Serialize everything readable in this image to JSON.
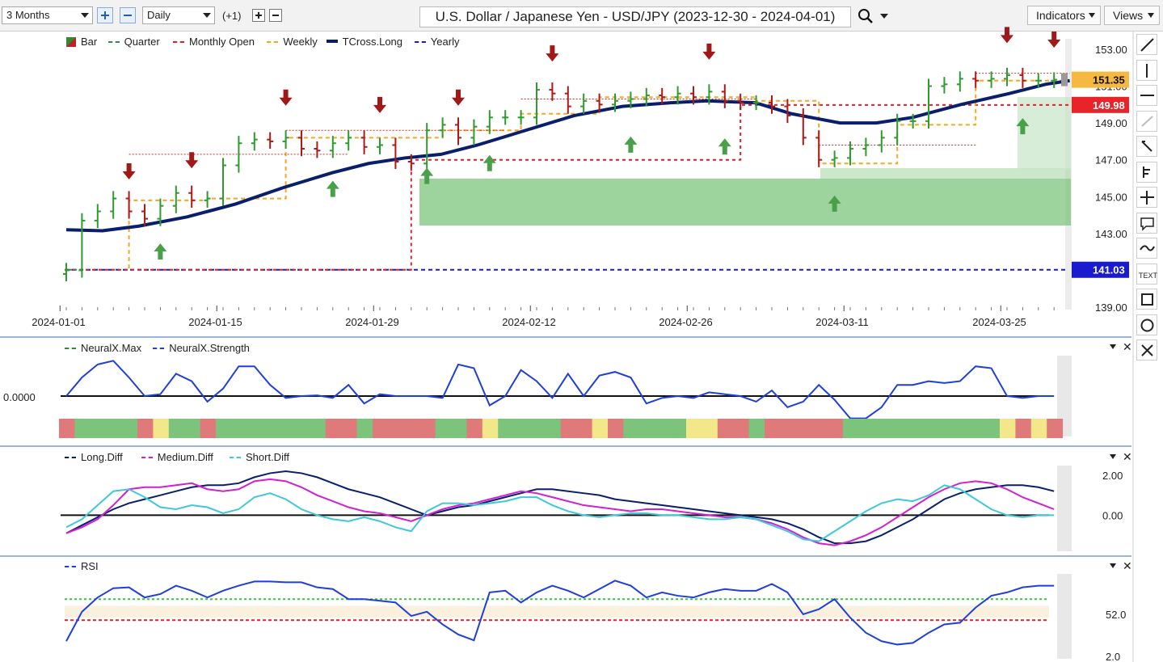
{
  "toolbar": {
    "period": "3 Months",
    "interval": "Daily",
    "offset": "(+1)",
    "title": "U.S. Dollar / Japanese Yen - USD/JPY (2023-12-30 - 2024-04-01)",
    "indicators_label": "Indicators",
    "views_label": "Views"
  },
  "main_chart": {
    "legend": [
      {
        "label": "Bar",
        "color": "#2e8b2e",
        "icon": "bar-swatch-icon"
      },
      {
        "label": "Quarter",
        "color": "#2e8b57",
        "style": "dotted"
      },
      {
        "label": "Monthly Open",
        "color": "#e0202a",
        "style": "dashed"
      },
      {
        "label": "Weekly",
        "color": "#f5a623",
        "style": "dashed"
      },
      {
        "label": "TCross.Long",
        "color": "#0a1f6b",
        "style": "solid"
      },
      {
        "label": "Yearly",
        "color": "#1a1acf",
        "style": "dashed"
      }
    ],
    "price_ticks": [
      "153.00",
      "151.00",
      "149.00",
      "147.00",
      "145.00",
      "143.00",
      "141.00",
      "139.00"
    ],
    "date_ticks": [
      "2024-01-01",
      "2024-01-15",
      "2024-01-29",
      "2024-02-12",
      "2024-02-26",
      "2024-03-11",
      "2024-03-25"
    ],
    "badges": [
      {
        "value": "151.35",
        "color": "#f5b840"
      },
      {
        "value": "149.98",
        "color": "#e8232a"
      },
      {
        "value": "141.03",
        "color": "#1a1acf"
      }
    ]
  },
  "neural_panel": {
    "legend": [
      {
        "label": "NeuralX.Max",
        "color": "#2e8b2e"
      },
      {
        "label": "NeuralX.Strength",
        "color": "#1f3fd8"
      }
    ],
    "axis_value": "0.0000"
  },
  "diff_panel": {
    "legend": [
      {
        "label": "Long.Diff",
        "color": "#0a1f6b"
      },
      {
        "label": "Medium.Diff",
        "color": "#d020d0"
      },
      {
        "label": "Short.Diff",
        "color": "#40c8d8"
      }
    ],
    "ticks": [
      "2.00",
      "0.00"
    ]
  },
  "rsi_panel": {
    "legend": [
      {
        "label": "RSI",
        "color": "#1f3fd8"
      }
    ],
    "ticks": [
      "52.0",
      "2.0"
    ]
  },
  "right_tools": [
    "line-tool-icon",
    "vertical-line-icon",
    "horizontal-line-icon",
    "ray-icon",
    "pen-icon",
    "fork-icon",
    "crosshair-icon",
    "comment-icon",
    "curve-icon",
    "text-icon",
    "rectangle-icon",
    "circle-icon",
    "close-icon"
  ],
  "chart_data": [
    {
      "type": "candlestick",
      "title": "U.S. Dollar / Japanese Yen - USD/JPY (2023-12-30 - 2024-04-01)",
      "x": [
        "2024-01-02",
        "2024-01-03",
        "2024-01-04",
        "2024-01-05",
        "2024-01-08",
        "2024-01-09",
        "2024-01-10",
        "2024-01-11",
        "2024-01-12",
        "2024-01-15",
        "2024-01-16",
        "2024-01-17",
        "2024-01-18",
        "2024-01-19",
        "2024-01-22",
        "2024-01-23",
        "2024-01-24",
        "2024-01-25",
        "2024-01-26",
        "2024-01-29",
        "2024-01-30",
        "2024-01-31",
        "2024-02-01",
        "2024-02-02",
        "2024-02-05",
        "2024-02-06",
        "2024-02-07",
        "2024-02-08",
        "2024-02-09",
        "2024-02-12",
        "2024-02-13",
        "2024-02-14",
        "2024-02-15",
        "2024-02-16",
        "2024-02-19",
        "2024-02-20",
        "2024-02-21",
        "2024-02-22",
        "2024-02-23",
        "2024-02-26",
        "2024-02-27",
        "2024-02-28",
        "2024-02-29",
        "2024-03-01",
        "2024-03-04",
        "2024-03-05",
        "2024-03-06",
        "2024-03-07",
        "2024-03-08",
        "2024-03-11",
        "2024-03-12",
        "2024-03-13",
        "2024-03-14",
        "2024-03-15",
        "2024-03-18",
        "2024-03-19",
        "2024-03-20",
        "2024-03-21",
        "2024-03-22",
        "2024-03-25",
        "2024-03-26",
        "2024-03-27",
        "2024-03-28",
        "2024-03-29"
      ],
      "price_axis": {
        "min": 139.0,
        "max": 153.0
      },
      "lines": {
        "Yearly": 141.03,
        "Monthly Open": 149.98,
        "last_price": 151.35
      },
      "tcross_long": [
        [
          0,
          143.2
        ],
        [
          3,
          143.15
        ],
        [
          6,
          143.4
        ],
        [
          10,
          143.9
        ],
        [
          14,
          144.6
        ],
        [
          18,
          145.5
        ],
        [
          22,
          146.3
        ],
        [
          25,
          146.8
        ],
        [
          28,
          147.1
        ],
        [
          31,
          147.3
        ],
        [
          34,
          147.8
        ],
        [
          38,
          148.6
        ],
        [
          42,
          149.4
        ],
        [
          46,
          149.9
        ],
        [
          50,
          150.1
        ],
        [
          53,
          150.2
        ],
        [
          57,
          150.1
        ],
        [
          60,
          149.5
        ],
        [
          64,
          149.0
        ],
        [
          67,
          149.0
        ],
        [
          70,
          149.3
        ],
        [
          74,
          150.0
        ],
        [
          78,
          150.6
        ],
        [
          81,
          151.1
        ],
        [
          83,
          151.3
        ]
      ],
      "closes": [
        141.0,
        143.7,
        144.2,
        144.9,
        144.2,
        143.8,
        144.5,
        145.2,
        144.8,
        144.9,
        146.7,
        147.9,
        148.1,
        148.0,
        148.2,
        147.6,
        147.5,
        147.9,
        148.2,
        147.7,
        147.8,
        146.9,
        146.8,
        148.6,
        148.9,
        148.2,
        148.8,
        149.3,
        149.3,
        149.3,
        150.8,
        150.6,
        149.9,
        150.2,
        150.0,
        150.2,
        150.3,
        150.5,
        150.4,
        150.6,
        150.4,
        150.7,
        150.2,
        150.1,
        150.1,
        149.9,
        149.4,
        148.2,
        147.0,
        147.1,
        147.6,
        147.8,
        148.2,
        149.1,
        149.1,
        151.0,
        151.1,
        151.4,
        151.3,
        151.4,
        151.6,
        151.3,
        151.3,
        151.35
      ]
    },
    {
      "type": "line",
      "series": [
        {
          "name": "NeuralX.Strength"
        }
      ],
      "ylim": [
        -1,
        1
      ],
      "values": [
        0.0,
        0.5,
        0.85,
        0.95,
        0.5,
        0.0,
        0.05,
        0.6,
        0.4,
        -0.15,
        0.2,
        0.8,
        0.8,
        0.3,
        -0.05,
        0.0,
        0.02,
        -0.05,
        0.3,
        -0.2,
        0.05,
        0.0,
        0.0,
        0.0,
        -0.05,
        0.85,
        0.75,
        -0.25,
        0.0,
        0.7,
        0.4,
        -0.05,
        0.6,
        0.0,
        0.55,
        0.65,
        0.5,
        -0.2,
        -0.05,
        0.0,
        -0.05,
        0.1,
        0.05,
        0.0,
        -0.15,
        0.15,
        -0.3,
        -0.15,
        0.3,
        -0.1,
        -0.6,
        -0.6,
        -0.3,
        0.3,
        0.3,
        0.4,
        0.35,
        0.4,
        0.8,
        0.75,
        0.0,
        -0.05,
        0.0,
        0.0
      ]
    },
    {
      "type": "line",
      "series": [
        {
          "name": "Long.Diff"
        },
        {
          "name": "Medium.Diff"
        },
        {
          "name": "Short.Diff"
        }
      ],
      "ylim": [
        -1.8,
        2.4
      ]
    },
    {
      "type": "line",
      "series": [
        {
          "name": "RSI"
        }
      ],
      "ylim": [
        2,
        100
      ]
    }
  ]
}
